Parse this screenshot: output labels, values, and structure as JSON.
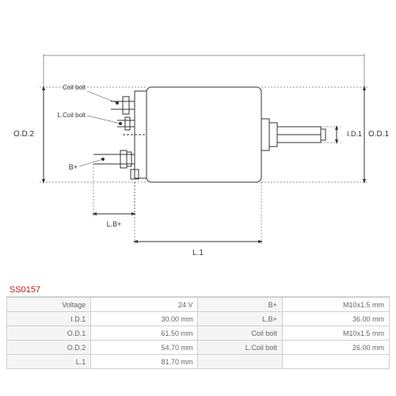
{
  "part_number": "SS0157",
  "diagram": {
    "labels": {
      "od2": "O.D.2",
      "od1": "O.D.1",
      "id1": "I.D.1",
      "coil_bolt": "Coil bolt",
      "l_coil_bolt": "L.Coil bolt",
      "b_plus": "B+",
      "l_b_plus": "L.B+",
      "l1": "L.1"
    },
    "stroke_color": "#333333",
    "stroke_width": 1,
    "label_fontsize": 10,
    "label_color": "#333333"
  },
  "specs": {
    "left_col": [
      {
        "label": "Voltage",
        "value": "24 V"
      },
      {
        "label": "I.D.1",
        "value": "30.00 mm"
      },
      {
        "label": "O.D.1",
        "value": "61.50 mm"
      },
      {
        "label": "O.D.2",
        "value": "54.70 mm"
      },
      {
        "label": "L.1",
        "value": "81.70 mm"
      }
    ],
    "right_col": [
      {
        "label": "B+",
        "value": "M10x1.5 mm"
      },
      {
        "label": "L.B+",
        "value": "36.00 mm"
      },
      {
        "label": "Coil bolt",
        "value": "M10x1.5 mm"
      },
      {
        "label": "L.Coil bolt",
        "value": "26.00 mm"
      },
      {
        "label": "",
        "value": ""
      }
    ]
  }
}
